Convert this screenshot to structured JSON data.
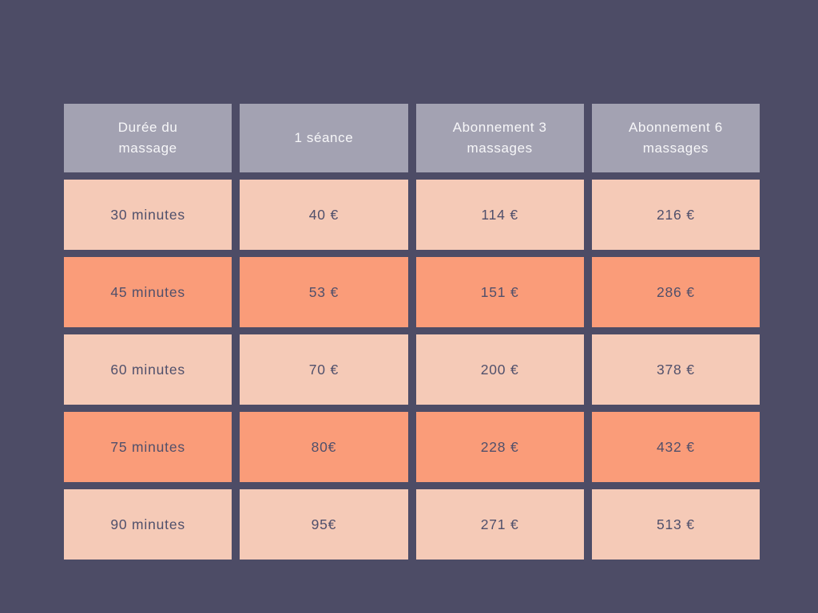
{
  "canvas": {
    "background_color": "#4d4c66"
  },
  "colors": {
    "header_bg": "#a3a2b2",
    "header_text": "#f7f7f9",
    "row_light_bg": "#f5cab7",
    "row_dark_bg": "#fa9c79",
    "cell_text": "#50506b"
  },
  "chart_data": {
    "type": "table",
    "columns": [
      "Durée du massage",
      "1 séance",
      "Abonnement 3 massages",
      "Abonnement 6 massages"
    ],
    "rows": [
      [
        "30 minutes",
        "40 €",
        "114 €",
        "216 €"
      ],
      [
        "45 minutes",
        "53 €",
        "151 €",
        "286 €"
      ],
      [
        "60 minutes",
        "70 €",
        "200 €",
        "378 €"
      ],
      [
        "75 minutes",
        "80€",
        "228 €",
        "432 €"
      ],
      [
        "90 minutes",
        "95€",
        "271 €",
        "513 €"
      ]
    ],
    "row_style_alternation": [
      "light",
      "dark",
      "light",
      "dark",
      "light"
    ],
    "currency": "EUR",
    "numeric_values": {
      "duration_minutes": [
        30,
        45,
        60,
        75,
        90
      ],
      "one_session": [
        40,
        53,
        70,
        80,
        95
      ],
      "subscription_3": [
        114,
        151,
        200,
        228,
        271
      ],
      "subscription_6": [
        216,
        286,
        378,
        432,
        513
      ]
    }
  }
}
